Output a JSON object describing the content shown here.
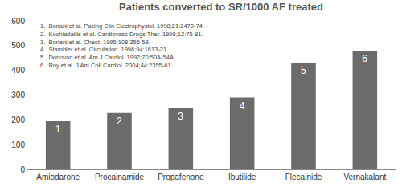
{
  "chart_data": {
    "type": "bar",
    "title": "Patients converted to SR/1000 AF treated",
    "categories": [
      "Amiodarone",
      "Procainamide",
      "Propafenone",
      "Ibutilide",
      "Flecainide",
      "Vernakalant"
    ],
    "values": [
      195,
      228,
      248,
      290,
      430,
      480
    ],
    "bar_labels": [
      "1",
      "2",
      "3",
      "4",
      "5",
      "6"
    ],
    "color": "#6b6b6b",
    "ylim": [
      0,
      600
    ],
    "yticks": [
      0,
      100,
      200,
      300,
      400,
      500,
      600
    ],
    "grid": false,
    "annotations": [
      "1.  Boriani et al. Pacing Clin Electrophysiol. 1998;21:2470-74.",
      "2.  Kochiadakis et al. Cardiovasc Drugs Ther. 1998;12:75-81.",
      "3.  Boriani et al. Chest. 1995;108:355-58.",
      "4.  Stambler et al. Circulation. 1996;94:1613-21.",
      "5.  Donovan et al. Am J Cardiol. 1992;70:50A-54A.",
      "6.  Roy et al. J Am Coll Cardiol. 2004;44:2355-61."
    ]
  }
}
